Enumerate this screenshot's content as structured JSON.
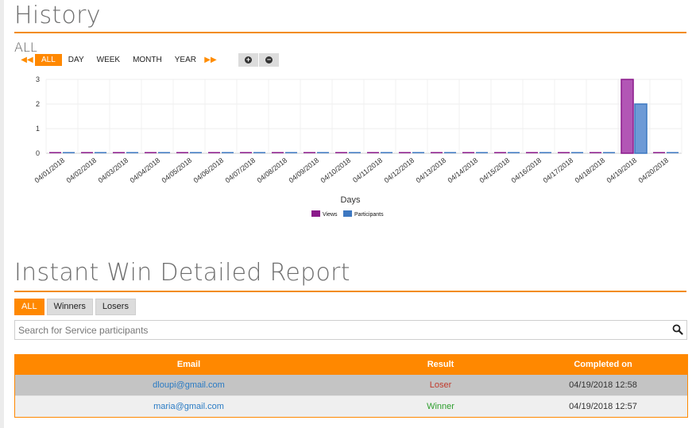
{
  "history": {
    "title": "History",
    "range_label": "ALL",
    "range_buttons": [
      "ALL",
      "DAY",
      "WEEK",
      "MONTH",
      "YEAR"
    ],
    "active_range": "ALL",
    "prev_icon": "double-arrow-left-icon",
    "next_icon": "double-arrow-right-icon",
    "zoom_in_icon": "plus-circle-icon",
    "zoom_out_icon": "minus-circle-icon"
  },
  "chart_data": {
    "type": "bar",
    "xlabel": "Days",
    "ylabel": "",
    "ylim": [
      0,
      3
    ],
    "yticks": [
      0,
      1,
      2,
      3
    ],
    "grid": true,
    "legend_position": "bottom-center",
    "categories": [
      "04/01/2018",
      "04/02/2018",
      "04/03/2018",
      "04/04/2018",
      "04/05/2018",
      "04/06/2018",
      "04/07/2018",
      "04/08/2018",
      "04/09/2018",
      "04/10/2018",
      "04/11/2018",
      "04/12/2018",
      "04/13/2018",
      "04/14/2018",
      "04/15/2018",
      "04/16/2018",
      "04/17/2018",
      "04/18/2018",
      "04/19/2018",
      "04/20/2018"
    ],
    "series": [
      {
        "name": "Views",
        "color": "#8b1a8b",
        "values": [
          0,
          0,
          0,
          0,
          0,
          0,
          0,
          0,
          0,
          0,
          0,
          0,
          0,
          0,
          0,
          0,
          0,
          0,
          3,
          0
        ]
      },
      {
        "name": "Participants",
        "color": "#3d78c1",
        "values": [
          0,
          0,
          0,
          0,
          0,
          0,
          0,
          0,
          0,
          0,
          0,
          0,
          0,
          0,
          0,
          0,
          0,
          0,
          2,
          0
        ]
      }
    ]
  },
  "report": {
    "title": "Instant Win Detailed Report",
    "filter_tabs": [
      "ALL",
      "Winners",
      "Losers"
    ],
    "active_tab": "ALL",
    "search_placeholder": "Search for Service participants",
    "search_icon": "magnifier-icon",
    "columns": [
      "Email",
      "Result",
      "Completed on"
    ],
    "rows": [
      {
        "email": "dloupi@gmail.com",
        "result": "Loser",
        "completed_on": "04/19/2018 12:58"
      },
      {
        "email": "maria@gmail.com",
        "result": "Winner",
        "completed_on": "04/19/2018 12:57"
      }
    ],
    "colors": {
      "loser": "#c0392b",
      "winner": "#2e9e2e",
      "link": "#2a7bc4",
      "accent": "#ff8800"
    }
  }
}
